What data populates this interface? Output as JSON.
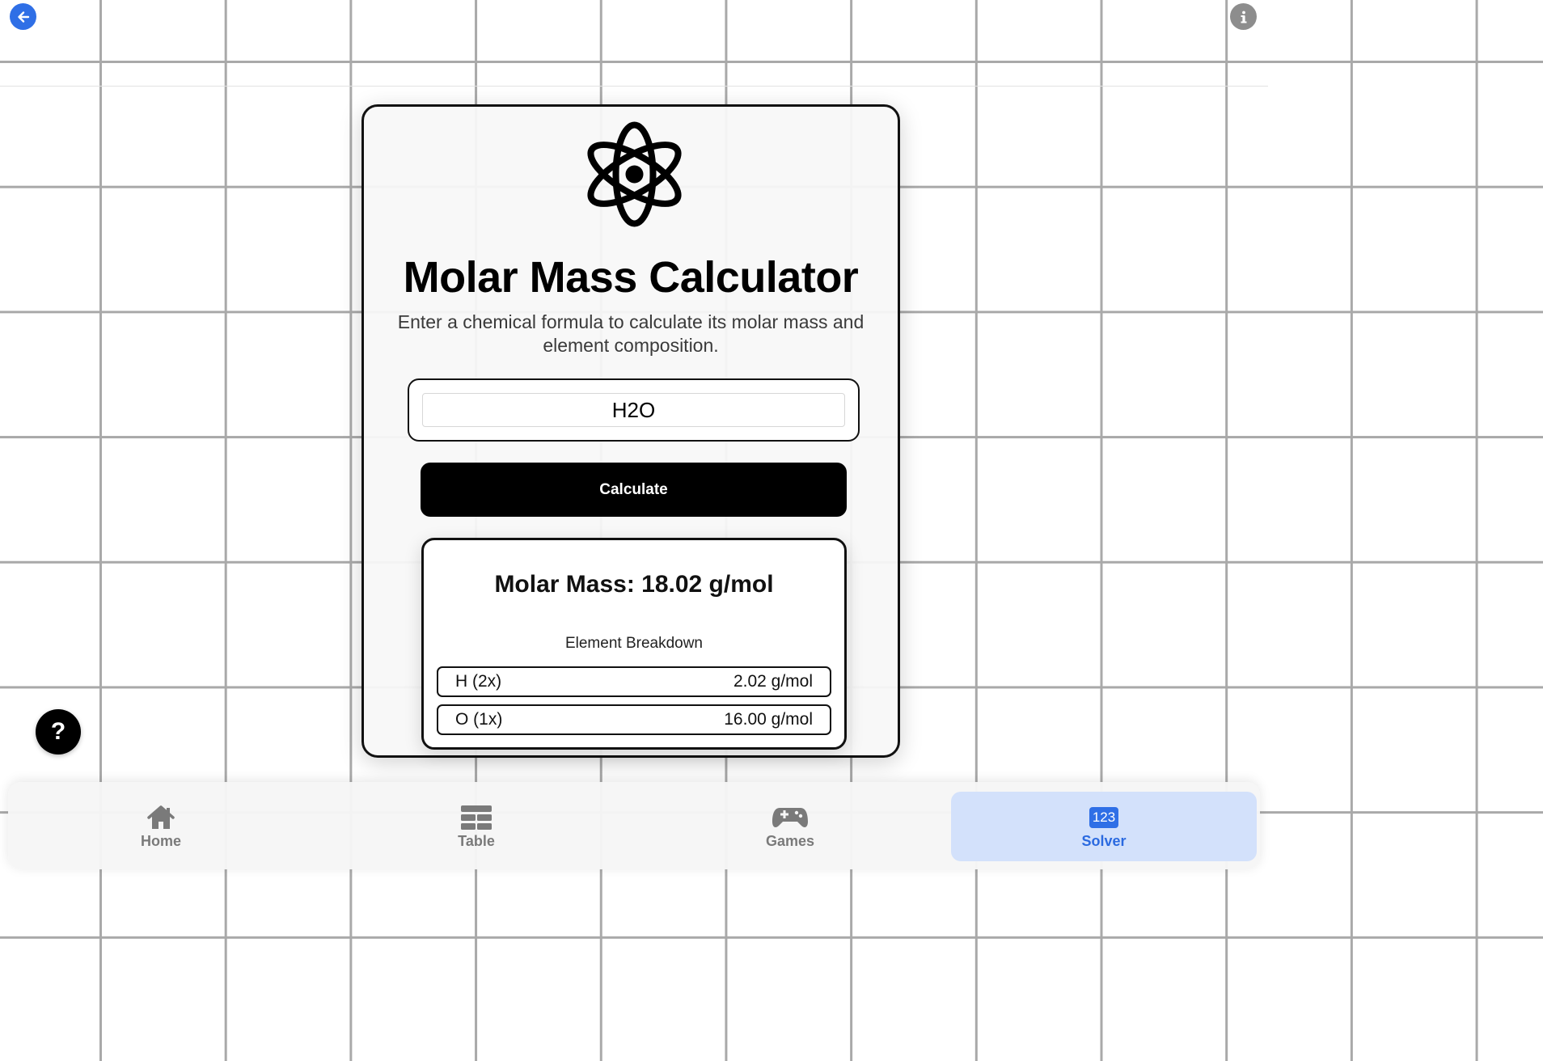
{
  "app": {
    "title": "Molar Mass Calculator",
    "subtitle": "Enter a chemical formula to calculate its molar mass and element composition.",
    "accent_color": "#2f6fe6"
  },
  "toolbar": {
    "back_icon": "arrow-left-icon",
    "info_icon": "info-icon",
    "help_label": "?"
  },
  "form": {
    "formula_value": "H2O",
    "calculate_label": "Calculate"
  },
  "result": {
    "molar_mass_text": "Molar Mass: 18.02 g/mol",
    "breakdown_title": "Element Breakdown",
    "elements": [
      {
        "label": "H (2x)",
        "mass": "2.02 g/mol"
      },
      {
        "label": "O (1x)",
        "mass": "16.00 g/mol"
      }
    ]
  },
  "tabs": [
    {
      "label": "Home",
      "icon": "home-icon",
      "active": false
    },
    {
      "label": "Table",
      "icon": "table-icon",
      "active": false
    },
    {
      "label": "Games",
      "icon": "gamepad-icon",
      "active": false
    },
    {
      "label": "Solver",
      "icon": "123-icon",
      "badge": "123",
      "active": true
    }
  ]
}
